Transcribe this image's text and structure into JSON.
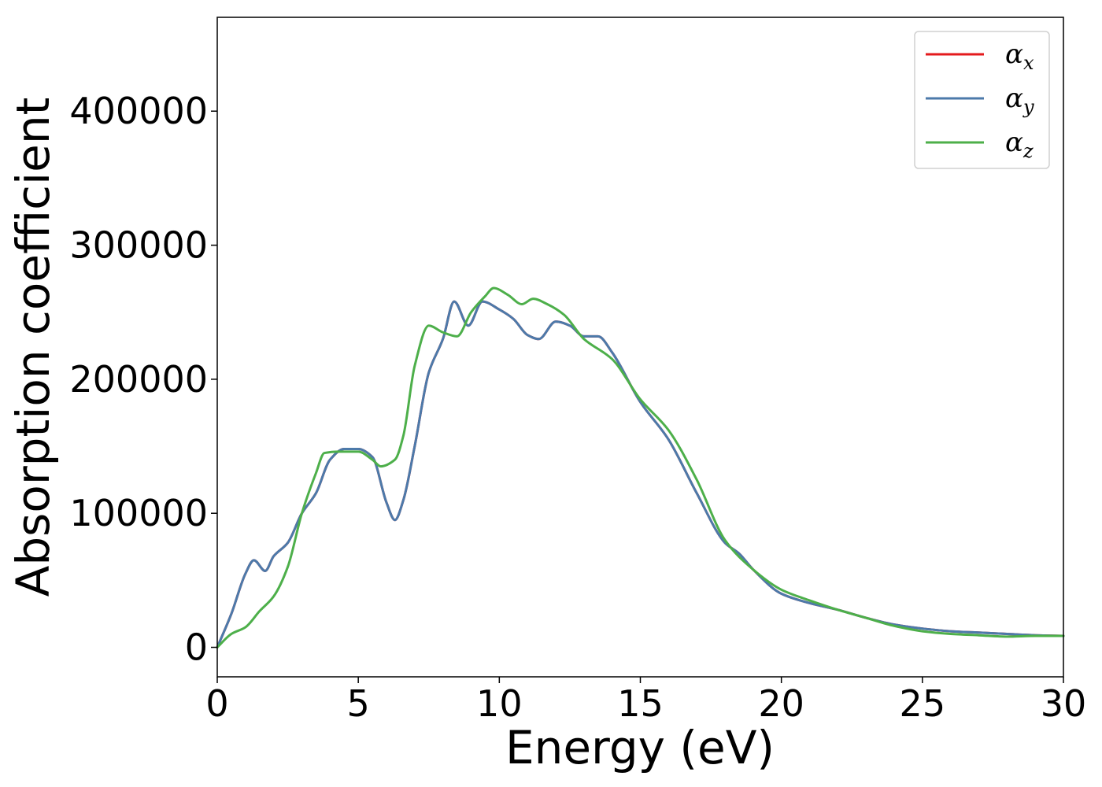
{
  "chart_data": {
    "type": "line",
    "title": "",
    "xlabel": "Energy (eV)",
    "ylabel": "Absorption coefficient",
    "xlim": [
      0,
      30
    ],
    "ylim": [
      -22000,
      470000
    ],
    "xticks": [
      0,
      5,
      10,
      15,
      20,
      25,
      30
    ],
    "yticks": [
      0,
      100000,
      200000,
      300000,
      400000
    ],
    "grid": false,
    "legend_position": "top-right",
    "series": [
      {
        "name": "α",
        "subscript": "x",
        "color": "#e41a1c",
        "x": [
          0,
          0.5,
          1.0,
          1.3,
          1.7,
          2.0,
          2.5,
          3.0,
          3.5,
          4.0,
          4.5,
          5.0,
          5.5,
          6.0,
          6.3,
          6.6,
          7.0,
          7.5,
          8.0,
          8.4,
          8.9,
          9.4,
          10.0,
          10.5,
          11.0,
          11.4,
          12.0,
          12.5,
          13.0,
          13.5,
          14.0,
          15.0,
          16.0,
          17.0,
          18.0,
          18.5,
          19.0,
          20.0,
          21.0,
          22.0,
          23.0,
          24.0,
          25.0,
          26.0,
          27.0,
          28.0,
          29.0,
          30.0
        ],
        "y": [
          0,
          25000,
          55000,
          65000,
          57000,
          68000,
          78000,
          100000,
          115000,
          140000,
          148000,
          148000,
          142000,
          108000,
          95000,
          110000,
          150000,
          205000,
          230000,
          258000,
          240000,
          258000,
          252000,
          245000,
          233000,
          230000,
          243000,
          240000,
          232000,
          232000,
          220000,
          183000,
          155000,
          115000,
          78000,
          70000,
          58000,
          40000,
          33000,
          28000,
          22000,
          17000,
          14000,
          12000,
          11000,
          10000,
          9000,
          8500
        ]
      },
      {
        "name": "α",
        "subscript": "y",
        "color": "#4c7aaa",
        "x": [
          0,
          0.5,
          1.0,
          1.3,
          1.7,
          2.0,
          2.5,
          3.0,
          3.5,
          4.0,
          4.5,
          5.0,
          5.5,
          6.0,
          6.3,
          6.6,
          7.0,
          7.5,
          8.0,
          8.4,
          8.9,
          9.4,
          10.0,
          10.5,
          11.0,
          11.4,
          12.0,
          12.5,
          13.0,
          13.5,
          14.0,
          15.0,
          16.0,
          17.0,
          18.0,
          18.5,
          19.0,
          20.0,
          21.0,
          22.0,
          23.0,
          24.0,
          25.0,
          26.0,
          27.0,
          28.0,
          29.0,
          30.0
        ],
        "y": [
          0,
          25000,
          55000,
          65000,
          57000,
          68000,
          78000,
          100000,
          115000,
          140000,
          148000,
          148000,
          142000,
          108000,
          95000,
          110000,
          150000,
          205000,
          230000,
          258000,
          240000,
          258000,
          252000,
          245000,
          233000,
          230000,
          243000,
          240000,
          232000,
          232000,
          220000,
          183000,
          155000,
          115000,
          78000,
          70000,
          58000,
          40000,
          33000,
          28000,
          22000,
          17000,
          14000,
          12000,
          11000,
          10000,
          9000,
          8500
        ]
      },
      {
        "name": "α",
        "subscript": "z",
        "color": "#4daf4a",
        "x": [
          0,
          0.5,
          1.0,
          1.5,
          2.0,
          2.5,
          3.0,
          3.5,
          3.8,
          4.3,
          5.0,
          5.5,
          5.8,
          6.3,
          6.6,
          7.0,
          7.5,
          8.0,
          8.5,
          9.0,
          9.5,
          9.8,
          10.3,
          10.8,
          11.2,
          11.7,
          12.3,
          13.0,
          14.0,
          15.0,
          16.0,
          17.0,
          18.0,
          19.0,
          20.0,
          21.0,
          22.0,
          23.0,
          24.0,
          25.0,
          26.0,
          27.0,
          28.0,
          29.0,
          30.0
        ],
        "y": [
          0,
          10000,
          15000,
          27000,
          38000,
          60000,
          100000,
          130000,
          145000,
          146000,
          146000,
          140000,
          135000,
          140000,
          158000,
          210000,
          240000,
          235000,
          232000,
          250000,
          262000,
          268000,
          263000,
          256000,
          260000,
          256000,
          248000,
          230000,
          215000,
          185000,
          162000,
          125000,
          80000,
          58000,
          43000,
          35000,
          28000,
          22000,
          16000,
          12000,
          10000,
          9000,
          8000,
          8500,
          8500
        ]
      }
    ]
  }
}
